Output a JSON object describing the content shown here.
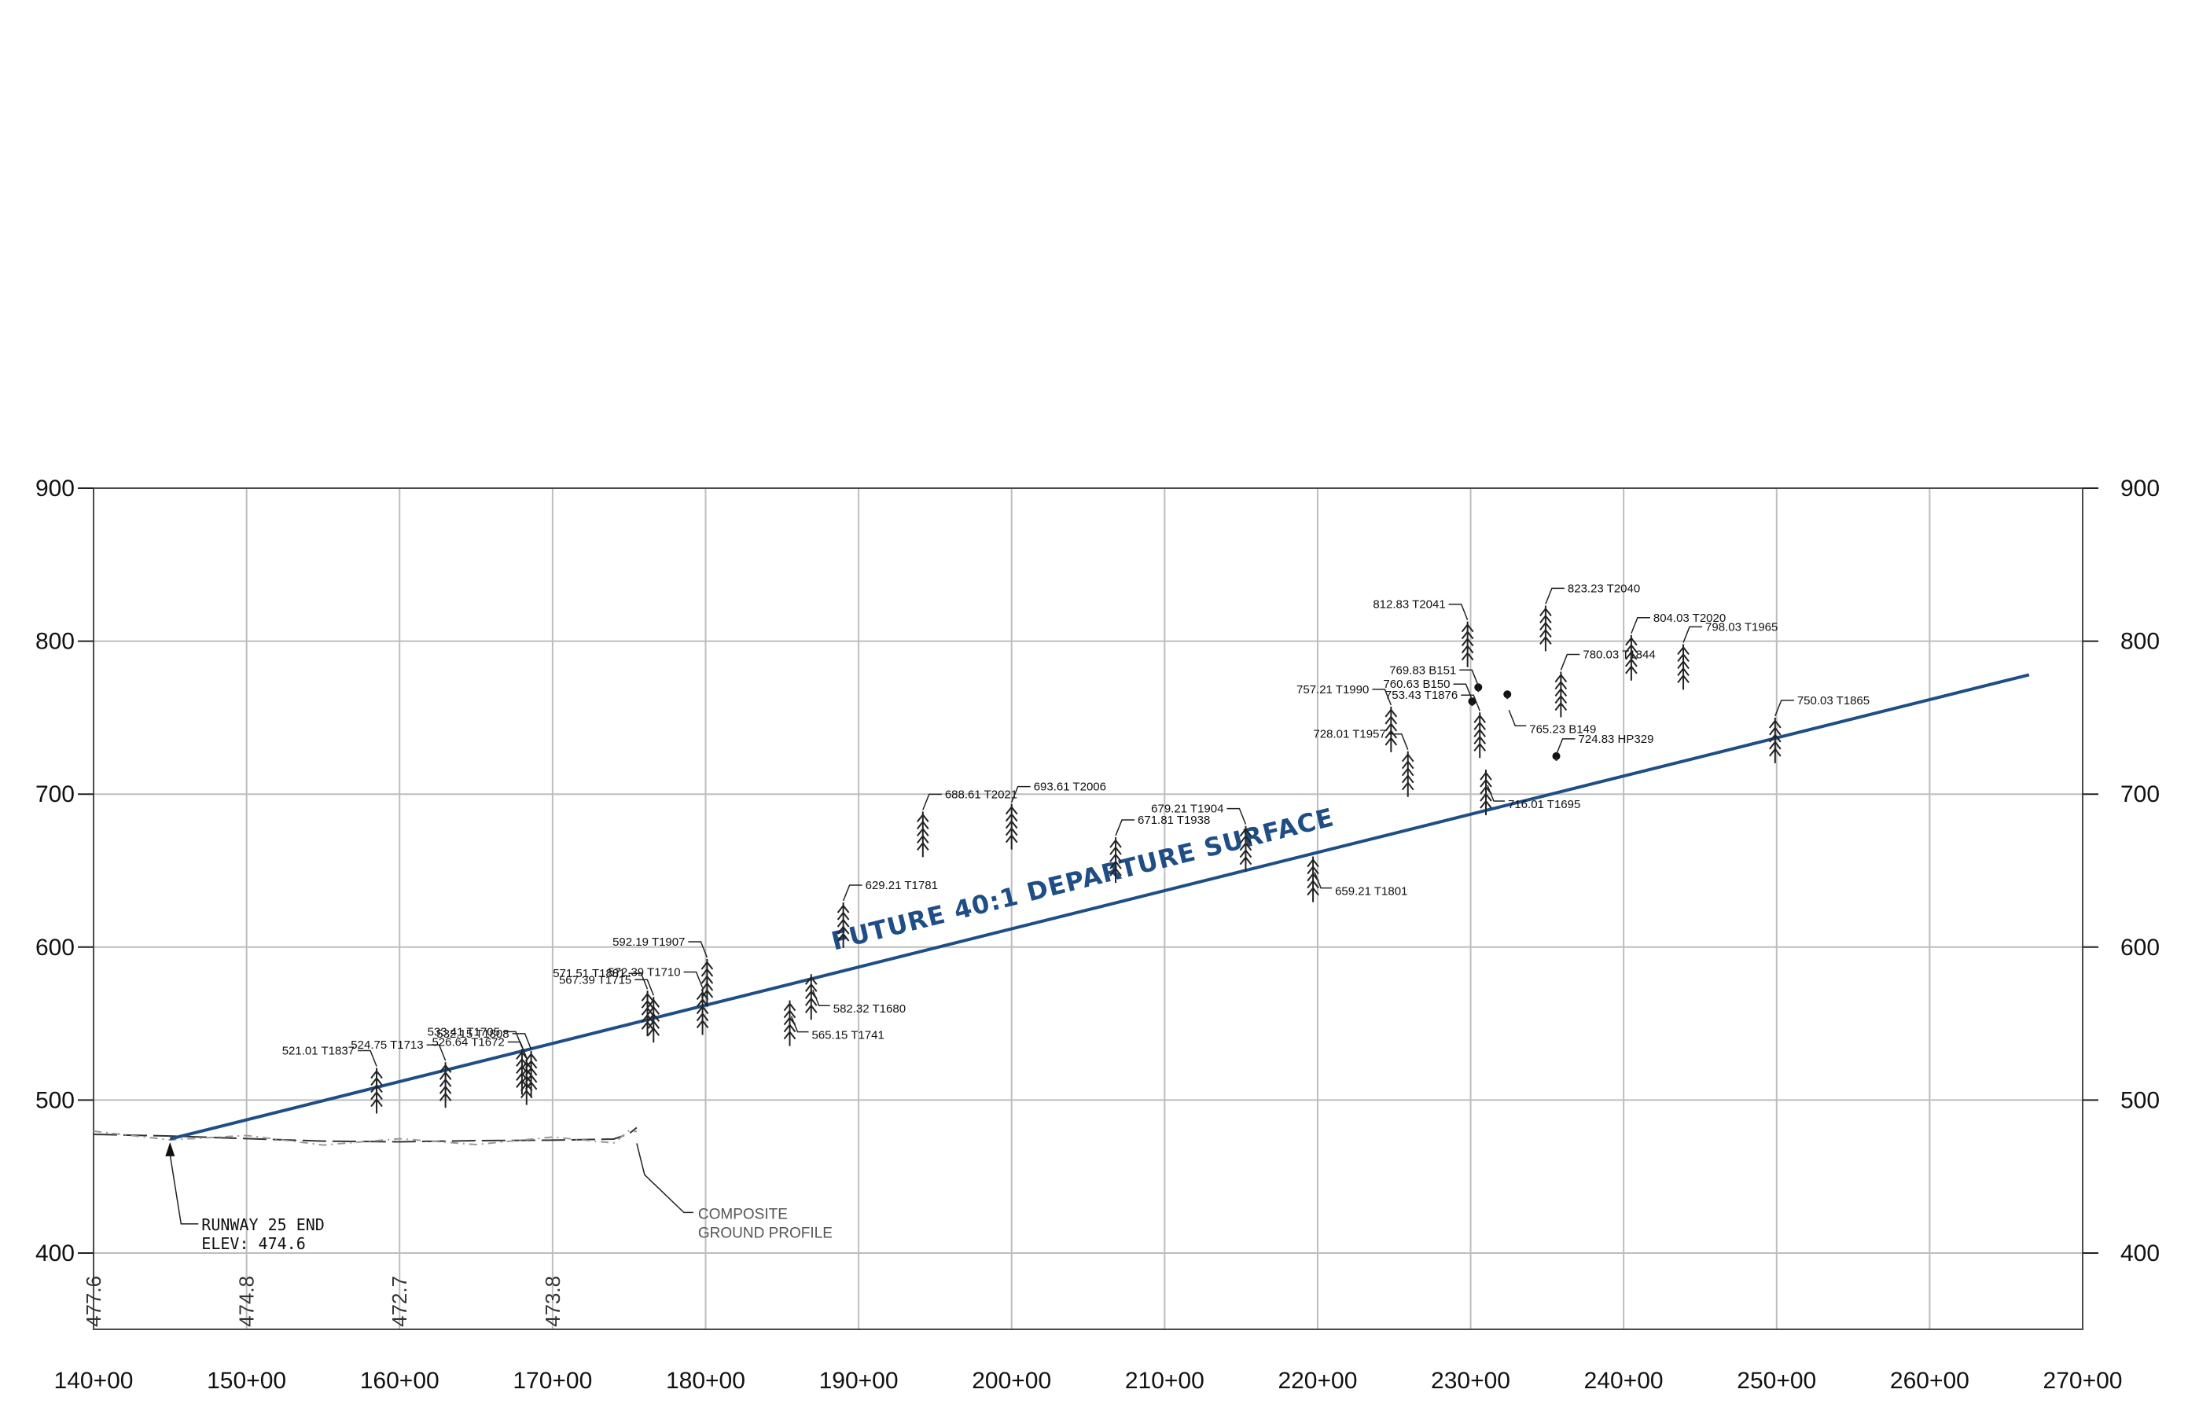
{
  "chart_data": {
    "type": "scatter",
    "x_axis": {
      "min": 140,
      "max": 270,
      "step": 10,
      "tick_labels": [
        "140+00",
        "150+00",
        "160+00",
        "170+00",
        "180+00",
        "190+00",
        "200+00",
        "210+00",
        "220+00",
        "230+00",
        "240+00",
        "250+00",
        "260+00",
        "270+00"
      ]
    },
    "y_axis": {
      "min": 400,
      "max": 900,
      "step": 100,
      "tick_labels": [
        "400",
        "500",
        "600",
        "700",
        "800",
        "900"
      ]
    },
    "ground_elevation_labels": [
      {
        "station": 140,
        "text": "477.6"
      },
      {
        "station": 150,
        "text": "474.8"
      },
      {
        "station": 160,
        "text": "472.7"
      },
      {
        "station": 170,
        "text": "473.8"
      }
    ],
    "departure_surface": {
      "label": "FUTURE 40:1 DEPARTURE SURFACE",
      "start": {
        "station": 145,
        "elev": 474.6
      },
      "end": {
        "station": 266.5,
        "elev": 778
      }
    },
    "ground_profile": {
      "label_lines": [
        "COMPOSITE",
        "GROUND PROFILE"
      ],
      "points": [
        [
          140,
          477.6
        ],
        [
          145,
          476.5
        ],
        [
          150,
          474.8
        ],
        [
          155,
          473.2
        ],
        [
          160,
          472.7
        ],
        [
          165,
          473.5
        ],
        [
          170,
          473.8
        ],
        [
          174,
          474.5
        ],
        [
          175,
          478
        ],
        [
          175.5,
          482
        ]
      ]
    },
    "runway_end": {
      "label_lines": [
        "RUNWAY 25 END",
        "ELEV:  474.6"
      ],
      "station": 145,
      "elev": 474.6
    },
    "obstructions": [
      {
        "label": "521.01  T1837",
        "station": 158.5,
        "elev": 521.01,
        "kind": "tree",
        "side": "left"
      },
      {
        "label": "524.75  T1713",
        "station": 163.0,
        "elev": 524.75,
        "kind": "tree",
        "side": "left"
      },
      {
        "label": "533.41  T1705",
        "station": 168.0,
        "elev": 533.41,
        "kind": "tree",
        "side": "left"
      },
      {
        "label": "526.64  T1672",
        "station": 168.3,
        "elev": 526.64,
        "kind": "tree",
        "side": "left"
      },
      {
        "label": "532.15  T1808",
        "station": 168.6,
        "elev": 532.15,
        "kind": "tree",
        "side": "left"
      },
      {
        "label": "571.51  T1881",
        "station": 176.2,
        "elev": 571.51,
        "kind": "tree",
        "side": "left"
      },
      {
        "label": "567.39  T1715",
        "station": 176.6,
        "elev": 567.39,
        "kind": "tree",
        "side": "left"
      },
      {
        "label": "572.39  T1710",
        "station": 179.8,
        "elev": 572.39,
        "kind": "tree",
        "side": "left"
      },
      {
        "label": "592.19  T1907",
        "station": 180.1,
        "elev": 592.19,
        "kind": "tree",
        "side": "left"
      },
      {
        "label": "565.15  T1741",
        "station": 185.5,
        "elev": 565.15,
        "kind": "tree",
        "side": "right"
      },
      {
        "label": "582.32  T1680",
        "station": 186.9,
        "elev": 582.32,
        "kind": "tree",
        "side": "right"
      },
      {
        "label": "629.21  T1781",
        "station": 189.0,
        "elev": 629.21,
        "kind": "tree",
        "side": "right"
      },
      {
        "label": "688.61  T2021",
        "station": 194.2,
        "elev": 688.61,
        "kind": "tree",
        "side": "right"
      },
      {
        "label": "693.61  T2006",
        "station": 200.0,
        "elev": 693.61,
        "kind": "tree",
        "side": "right"
      },
      {
        "label": "671.81  T1938",
        "station": 206.8,
        "elev": 671.81,
        "kind": "tree",
        "side": "right"
      },
      {
        "label": "679.21  T1904",
        "station": 215.3,
        "elev": 679.21,
        "kind": "tree",
        "side": "left"
      },
      {
        "label": "659.21  T1801",
        "station": 219.7,
        "elev": 659.21,
        "kind": "tree",
        "side": "right"
      },
      {
        "label": "757.21  T1990",
        "station": 224.8,
        "elev": 757.21,
        "kind": "tree",
        "side": "left"
      },
      {
        "label": "728.01  T1957",
        "station": 225.9,
        "elev": 728.01,
        "kind": "tree",
        "side": "left"
      },
      {
        "label": "812.83  T2041",
        "station": 229.8,
        "elev": 812.83,
        "kind": "tree",
        "side": "left"
      },
      {
        "label": "769.83  B151",
        "station": 230.5,
        "elev": 769.83,
        "kind": "building",
        "side": "left"
      },
      {
        "label": "760.63  B150",
        "station": 230.1,
        "elev": 760.63,
        "kind": "building",
        "side": "left"
      },
      {
        "label": "753.43  T1876",
        "station": 230.6,
        "elev": 753.43,
        "kind": "tree",
        "side": "left"
      },
      {
        "label": "716.01  T1695",
        "station": 231.0,
        "elev": 716.01,
        "kind": "tree",
        "side": "right"
      },
      {
        "label": "765.23  B149",
        "station": 232.4,
        "elev": 765.23,
        "kind": "building",
        "side": "right"
      },
      {
        "label": "823.23  T2040",
        "station": 234.9,
        "elev": 823.23,
        "kind": "tree",
        "side": "right"
      },
      {
        "label": "780.03  T1844",
        "station": 235.9,
        "elev": 780.03,
        "kind": "tree",
        "side": "right"
      },
      {
        "label": "724.83  HP329",
        "station": 235.6,
        "elev": 724.83,
        "kind": "point",
        "side": "right"
      },
      {
        "label": "804.03  T2020",
        "station": 240.5,
        "elev": 804.03,
        "kind": "tree",
        "side": "right"
      },
      {
        "label": "798.03  T1965",
        "station": 243.9,
        "elev": 798.03,
        "kind": "tree",
        "side": "right"
      },
      {
        "label": "750.03  T1865",
        "station": 249.9,
        "elev": 750.03,
        "kind": "tree",
        "side": "right"
      }
    ]
  }
}
